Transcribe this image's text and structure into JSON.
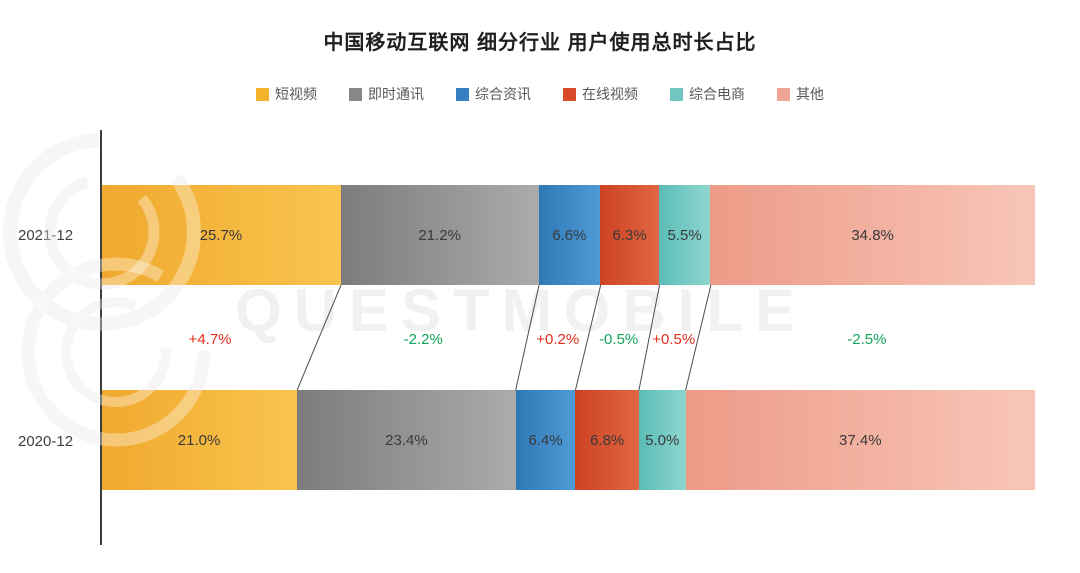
{
  "title": "中国移动互联网 细分行业 用户使用总时长占比",
  "watermark": "QUESTMOBILE",
  "legend": [
    {
      "label": "短视频",
      "color": "#F4B22C"
    },
    {
      "label": "即时通讯",
      "color": "#878787"
    },
    {
      "label": "综合资讯",
      "color": "#3580C0"
    },
    {
      "label": "在线视频",
      "color": "#D84B2A"
    },
    {
      "label": "综合电商",
      "color": "#73C6C0"
    },
    {
      "label": "其他",
      "color": "#F0A494"
    }
  ],
  "chart_data": {
    "type": "bar",
    "subtype": "horizontal-stacked-100",
    "categories": [
      "2021-12",
      "2020-12"
    ],
    "series": [
      {
        "name": "短视频",
        "color": "#F0A92E",
        "color_light": "#F9C44E",
        "values": [
          25.7,
          21.0
        ]
      },
      {
        "name": "即时通讯",
        "color": "#7C7C7C",
        "color_light": "#ABABAB",
        "values": [
          21.2,
          23.4
        ]
      },
      {
        "name": "综合资讯",
        "color": "#2F78B6",
        "color_light": "#4E9AD6",
        "values": [
          6.6,
          6.4
        ]
      },
      {
        "name": "在线视频",
        "color": "#CC4223",
        "color_light": "#E16643",
        "values": [
          6.3,
          6.8
        ]
      },
      {
        "name": "综合电商",
        "color": "#5ABDB6",
        "color_light": "#8FD6D0",
        "values": [
          5.5,
          5.0
        ]
      },
      {
        "name": "其他",
        "color": "#ED9B88",
        "color_light": "#F8C6B8",
        "values": [
          34.8,
          37.4
        ]
      }
    ],
    "changes": [
      {
        "label": "+4.7%",
        "positive": true
      },
      {
        "label": "-2.2%",
        "positive": false
      },
      {
        "label": "+0.2%",
        "positive": true
      },
      {
        "label": "-0.5%",
        "positive": false
      },
      {
        "label": "+0.5%",
        "positive": true
      },
      {
        "label": "-2.5%",
        "positive": false
      }
    ],
    "value_suffix": "%",
    "xlim": [
      0,
      100
    ],
    "colors": {
      "positive_change": "#E0301E",
      "negative_change": "#14A65A"
    },
    "legend_position": "top",
    "grid": false
  }
}
